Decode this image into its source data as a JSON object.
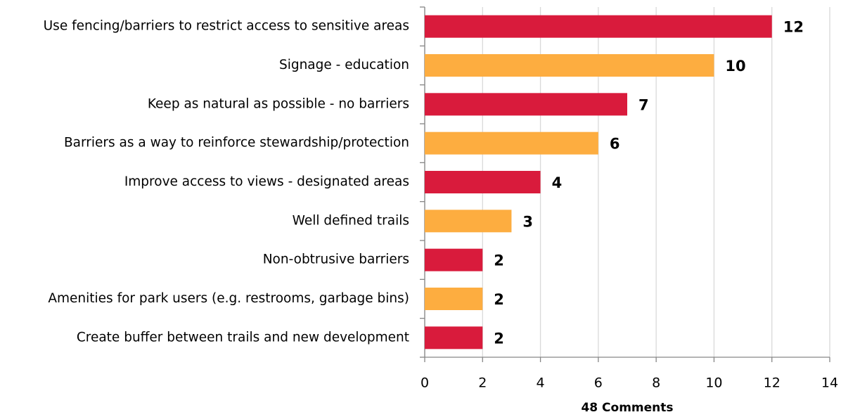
{
  "chart_data": {
    "type": "barh",
    "categories": [
      "Use fencing/barriers to restrict access to sensitive areas",
      "Signage - education",
      "Keep as natural as possible - no barriers",
      "Barriers as a way to reinforce stewardship/protection",
      "Improve access to views - designated areas",
      "Well defined trails",
      "Non-obtrusive barriers",
      "Amenities for park users (e.g. restrooms, garbage bins)",
      "Create buffer between trails and new development"
    ],
    "values": [
      12,
      10,
      7,
      6,
      4,
      3,
      2,
      2,
      2
    ],
    "colors": [
      "#d91b3c",
      "#fdad40",
      "#d91b3c",
      "#fdad40",
      "#d91b3c",
      "#fdad40",
      "#d91b3c",
      "#fdad40",
      "#d91b3c"
    ],
    "xlabel": "48 Comments",
    "xlim": [
      0,
      14
    ],
    "xticks": [
      0,
      2,
      4,
      6,
      8,
      10,
      12,
      14
    ],
    "grid": true
  }
}
